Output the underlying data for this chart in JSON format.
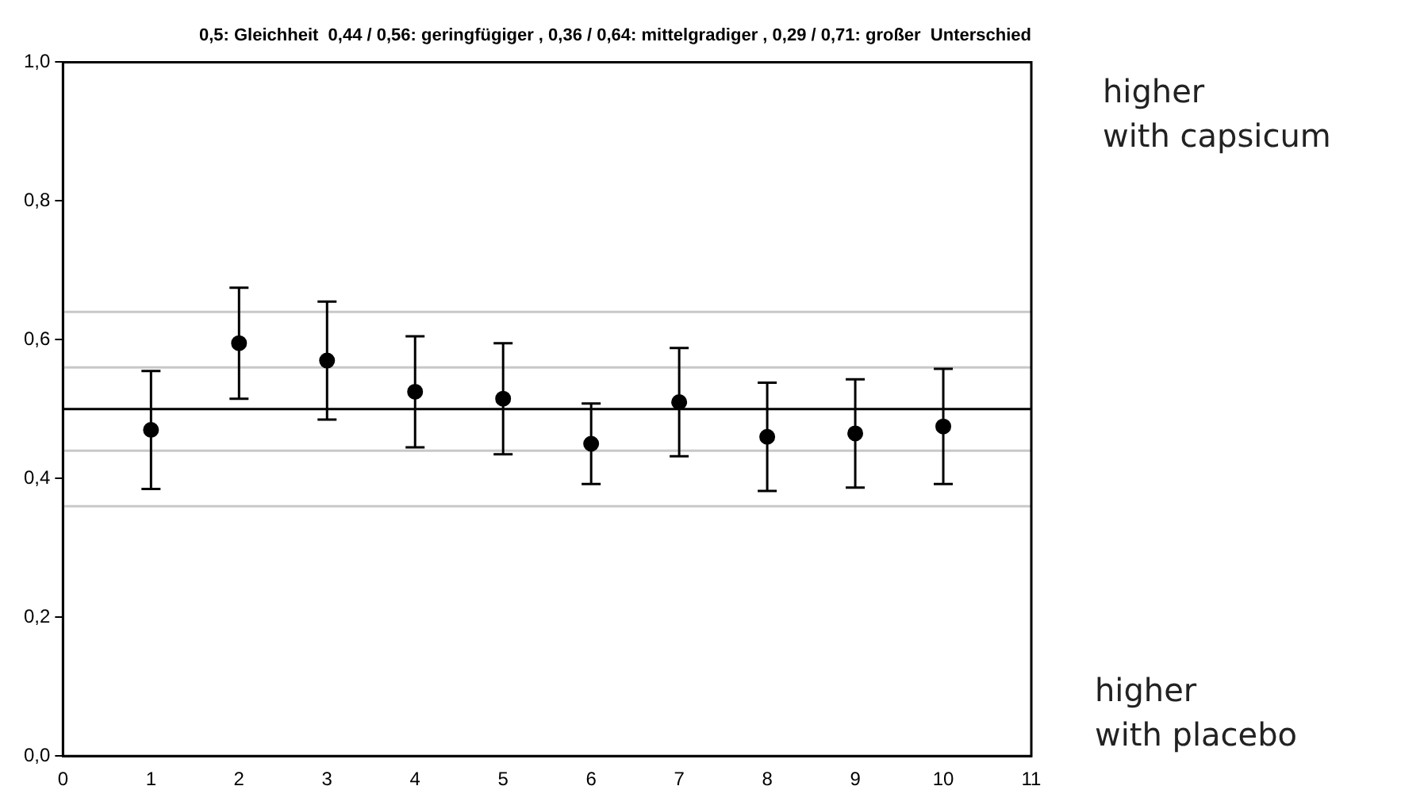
{
  "chart_data": {
    "type": "scatter",
    "title": "0,5: Gleichheit  0,44 / 0,56: geringfügiger , 0,36 / 0,64: mittelgradiger , 0,29 / 0,71: großer  Unterschied",
    "x": [
      1,
      2,
      3,
      4,
      5,
      6,
      7,
      8,
      9,
      10
    ],
    "series": [
      {
        "color": "#000000",
        "values": [
          0.47,
          0.595,
          0.57,
          0.525,
          0.515,
          0.45,
          0.51,
          0.46,
          0.465,
          0.475
        ],
        "errors": [
          0.085,
          0.08,
          0.085,
          0.08,
          0.08,
          0.058,
          0.078,
          0.078,
          0.078,
          0.083
        ]
      }
    ],
    "marker": "circle",
    "xlim": [
      0,
      11
    ],
    "xticks": [
      0,
      1,
      2,
      3,
      4,
      5,
      6,
      7,
      8,
      9,
      10,
      11
    ],
    "ylim": [
      0,
      1
    ],
    "yticks": [
      {
        "value": 0,
        "label": "0,0"
      },
      {
        "value": 0.2,
        "label": "0,2"
      },
      {
        "value": 0.4,
        "label": "0,4"
      },
      {
        "value": 0.6,
        "label": "0,6"
      },
      {
        "value": 0.8,
        "label": "0,8"
      },
      {
        "value": 1,
        "label": "1,0"
      }
    ],
    "ref_lines": [
      {
        "axis": "y",
        "value": 0.5,
        "color": "#000000"
      },
      {
        "axis": "y",
        "value": 0.36,
        "color": "#c8c8c8"
      },
      {
        "axis": "y",
        "value": 0.44,
        "color": "#c8c8c8"
      },
      {
        "axis": "y",
        "value": 0.56,
        "color": "#c8c8c8"
      },
      {
        "axis": "y",
        "value": 0.64,
        "color": "#c8c8c8"
      }
    ],
    "annotations": [
      "higher\nwith capsicum",
      "higher\nwith placebo"
    ],
    "grid": false,
    "legend": false
  }
}
